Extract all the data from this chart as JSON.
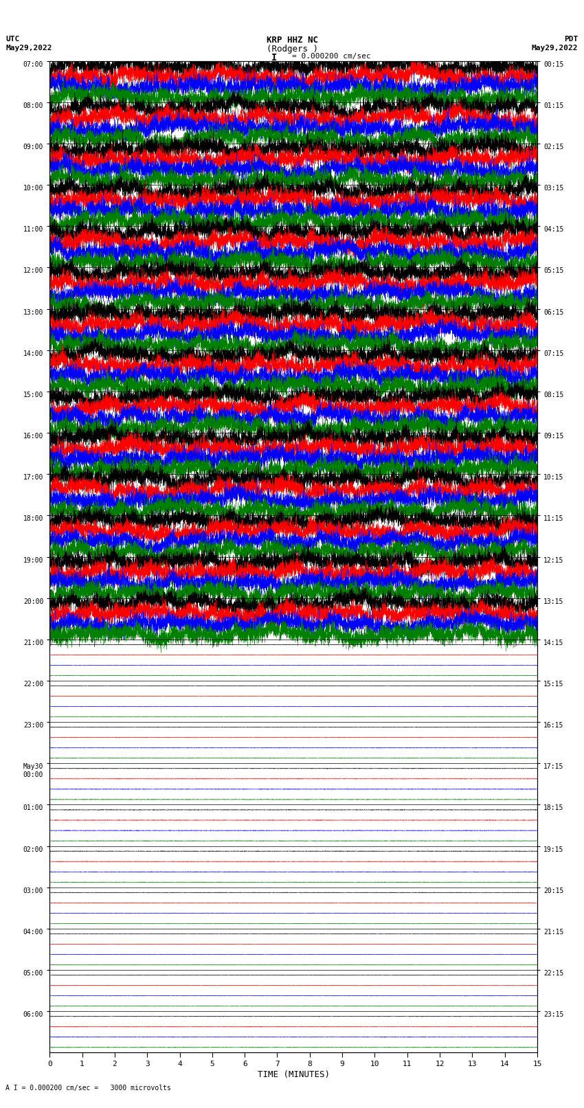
{
  "title_line1": "KRP HHZ NC",
  "title_line2": "(Rodgers )",
  "scale_label": "= 0.000200 cm/sec",
  "scale_bar": "I",
  "bottom_label": "A I = 0.000200 cm/sec =   3000 microvolts",
  "xlabel": "TIME (MINUTES)",
  "left_timezone": "UTC",
  "left_date": "May29,2022",
  "right_timezone": "PDT",
  "right_date": "May29,2022",
  "left_times_utc": [
    "07:00",
    "08:00",
    "09:00",
    "10:00",
    "11:00",
    "12:00",
    "13:00",
    "14:00",
    "15:00",
    "16:00",
    "17:00",
    "18:00",
    "19:00",
    "20:00",
    "21:00",
    "22:00",
    "23:00",
    "May30\n00:00",
    "01:00",
    "02:00",
    "03:00",
    "04:00",
    "05:00",
    "06:00"
  ],
  "right_times_pdt": [
    "00:15",
    "01:15",
    "02:15",
    "03:15",
    "04:15",
    "05:15",
    "06:15",
    "07:15",
    "08:15",
    "09:15",
    "10:15",
    "11:15",
    "12:15",
    "13:15",
    "14:15",
    "15:15",
    "16:15",
    "17:15",
    "18:15",
    "19:15",
    "20:15",
    "21:15",
    "22:15",
    "23:15"
  ],
  "num_rows": 24,
  "active_rows": 14,
  "minutes_per_row": 15,
  "sub_bands": 4,
  "colors_cycle": [
    "black",
    "red",
    "blue",
    "green"
  ],
  "bg_color": "white",
  "figsize": [
    8.5,
    16.13
  ],
  "dpi": 100
}
